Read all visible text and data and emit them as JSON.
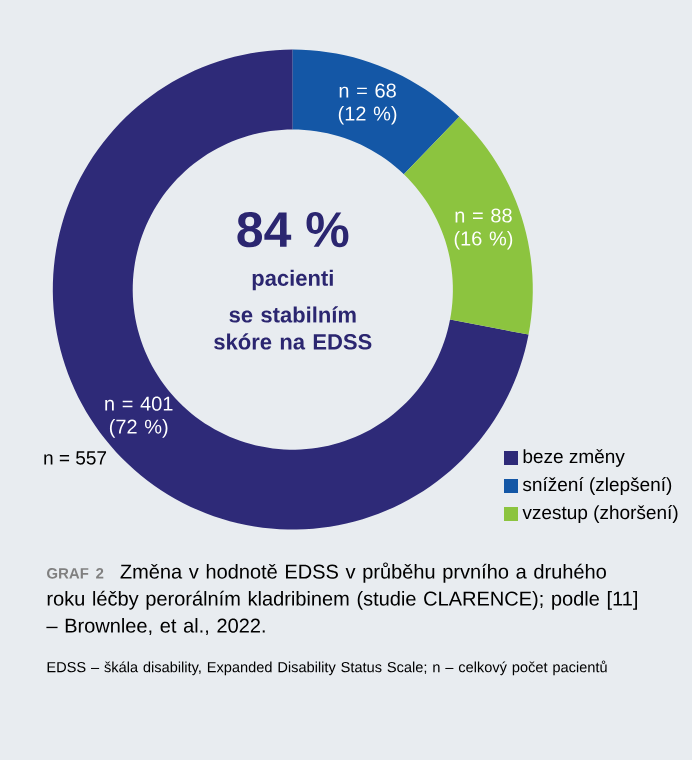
{
  "chart_data": {
    "type": "donut",
    "title": "GRAF 2",
    "subtitle": "Změna v hodnotě EDSS v průběhu prvního a druhého roku léčby perorálním kladribinem (studie CLARENCE); podle [11] – Brownlee, et al., 2022.",
    "categories": [
      "beze změny",
      "snížení (zlepšení)",
      "vzestup (zhoršení)"
    ],
    "values": [
      401,
      68,
      88
    ],
    "colors": [
      "#2e2a78",
      "#1457a6",
      "#8cc43f"
    ],
    "value_labels": [
      "n = 401 (72 %)",
      "n = 68 (12 %)",
      "n = 88 (16 %)"
    ],
    "annotations": [
      "84 %",
      "pacienti",
      "se stabilním skóre na EDSS",
      "n = 557",
      "EDSS – škála disability, Expanded Disability Status Scale; n – celkový počet pacientů"
    ],
    "legend": "bottom right"
  }
}
